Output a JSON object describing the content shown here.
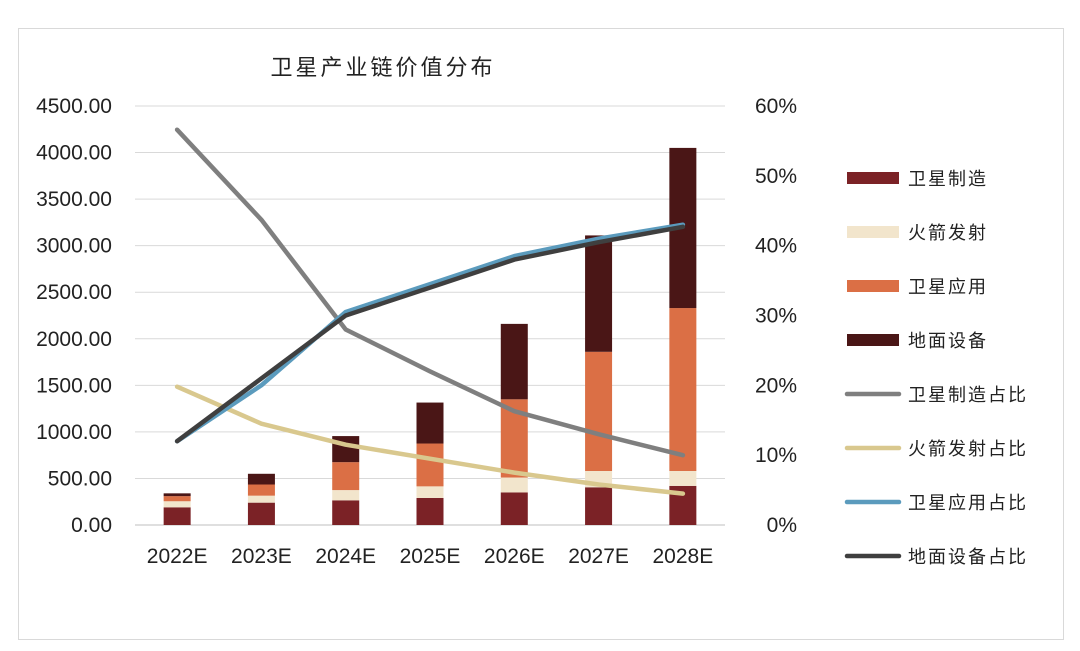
{
  "chart_data": {
    "type": "bar",
    "stacked": true,
    "title": "卫星产业链价值分布",
    "categories": [
      "2022E",
      "2023E",
      "2024E",
      "2025E",
      "2026E",
      "2027E",
      "2028E"
    ],
    "y_left": {
      "ylim": [
        0,
        4500
      ],
      "ticks": [
        "0.00",
        "500.00",
        "1000.00",
        "1500.00",
        "2000.00",
        "2500.00",
        "3000.00",
        "3500.00",
        "4000.00",
        "4500.00"
      ]
    },
    "y_right": {
      "ylim": [
        0,
        0.6
      ],
      "ticks": [
        "0%",
        "10%",
        "20%",
        "30%",
        "40%",
        "50%",
        "60%"
      ]
    },
    "grid": true,
    "legend_position": "right",
    "bar_series": [
      {
        "name": "卫星制造",
        "color": "#7b2226",
        "values": [
          190,
          240,
          265,
          290,
          350,
          405,
          420
        ]
      },
      {
        "name": "火箭发射",
        "color": "#f2e5cc",
        "values": [
          65,
          75,
          110,
          125,
          160,
          175,
          160
        ]
      },
      {
        "name": "卫星应用",
        "color": "#db6f45",
        "values": [
          55,
          120,
          300,
          460,
          840,
          1280,
          1750
        ]
      },
      {
        "name": "地面设备",
        "color": "#4a1616",
        "values": [
          30,
          115,
          280,
          440,
          810,
          1250,
          1720
        ]
      }
    ],
    "line_series": [
      {
        "name": "卫星制造占比",
        "color": "#7f7f7f",
        "axis": "right",
        "values": [
          0.566,
          0.437,
          0.28,
          0.22,
          0.163,
          0.13,
          0.1
        ]
      },
      {
        "name": "火箭发射占比",
        "color": "#d9c88e",
        "axis": "right",
        "values": [
          0.198,
          0.145,
          0.115,
          0.095,
          0.075,
          0.058,
          0.045
        ]
      },
      {
        "name": "卫星应用占比",
        "color": "#5b9bbd",
        "axis": "right",
        "values": [
          0.12,
          0.2,
          0.305,
          0.345,
          0.385,
          0.41,
          0.43
        ]
      },
      {
        "name": "地面设备占比",
        "color": "#3f3f3f",
        "axis": "right",
        "values": [
          0.12,
          0.21,
          0.3,
          0.34,
          0.38,
          0.405,
          0.427
        ]
      }
    ]
  }
}
